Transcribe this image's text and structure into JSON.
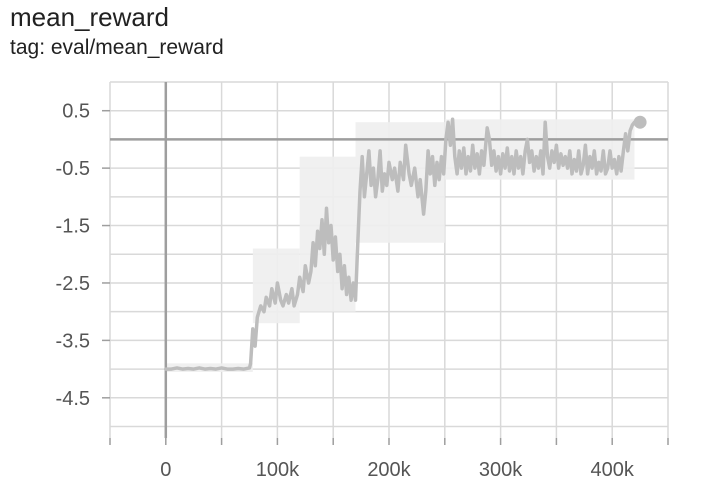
{
  "card": {
    "title": "mean_reward",
    "tag": "tag: eval/mean_reward"
  },
  "colors": {
    "grid": "#d9d9d9",
    "zero_axis": "#9e9e9e",
    "smoothed": "#bdbdbd",
    "raw": "#eeeeee"
  },
  "chart_data": {
    "type": "line",
    "title": "mean_reward",
    "xlabel": "",
    "ylabel": "",
    "xlim": [
      -50000,
      450000
    ],
    "ylim": [
      -5.2,
      1.0
    ],
    "grid": true,
    "x_ticks": [
      0,
      100000,
      200000,
      300000,
      400000
    ],
    "x_tick_labels": [
      "0",
      "100k",
      "200k",
      "300k",
      "400k"
    ],
    "y_ticks": [
      0.5,
      -0.5,
      -1.5,
      -2.5,
      -3.5,
      -4.5
    ],
    "y_tick_labels": [
      "0.5",
      "-0.5",
      "-1.5",
      "-2.5",
      "-3.5",
      "-4.5"
    ],
    "series": [
      {
        "name": "",
        "role": "smoothed",
        "points": [
          [
            0,
            -4.0
          ],
          [
            5000,
            -4.0
          ],
          [
            10000,
            -3.98
          ],
          [
            15000,
            -4.0
          ],
          [
            20000,
            -3.99
          ],
          [
            25000,
            -4.0
          ],
          [
            30000,
            -3.98
          ],
          [
            35000,
            -4.0
          ],
          [
            40000,
            -3.99
          ],
          [
            45000,
            -4.0
          ],
          [
            50000,
            -3.98
          ],
          [
            55000,
            -4.0
          ],
          [
            60000,
            -4.0
          ],
          [
            65000,
            -3.99
          ],
          [
            70000,
            -4.0
          ],
          [
            75000,
            -3.98
          ],
          [
            76000,
            -3.9
          ],
          [
            78000,
            -3.3
          ],
          [
            80000,
            -3.6
          ],
          [
            82000,
            -3.1
          ],
          [
            85000,
            -2.9
          ],
          [
            88000,
            -3.0
          ],
          [
            90000,
            -2.75
          ],
          [
            93000,
            -2.9
          ],
          [
            95000,
            -2.6
          ],
          [
            98000,
            -2.85
          ],
          [
            100000,
            -2.5
          ],
          [
            103000,
            -2.8
          ],
          [
            105000,
            -2.9
          ],
          [
            108000,
            -2.7
          ],
          [
            110000,
            -2.85
          ],
          [
            113000,
            -2.6
          ],
          [
            115000,
            -2.9
          ],
          [
            118000,
            -2.7
          ],
          [
            120000,
            -2.4
          ],
          [
            123000,
            -2.65
          ],
          [
            125000,
            -2.2
          ],
          [
            128000,
            -2.5
          ],
          [
            130000,
            -2.3
          ],
          [
            132000,
            -1.8
          ],
          [
            134000,
            -2.2
          ],
          [
            136000,
            -1.6
          ],
          [
            138000,
            -1.9
          ],
          [
            140000,
            -1.4
          ],
          [
            142000,
            -2.0
          ],
          [
            144000,
            -1.2
          ],
          [
            146000,
            -1.8
          ],
          [
            148000,
            -1.5
          ],
          [
            150000,
            -2.1
          ],
          [
            152000,
            -1.7
          ],
          [
            154000,
            -2.3
          ],
          [
            156000,
            -2.0
          ],
          [
            158000,
            -2.6
          ],
          [
            160000,
            -2.2
          ],
          [
            162000,
            -2.7
          ],
          [
            164000,
            -2.4
          ],
          [
            166000,
            -2.8
          ],
          [
            168000,
            -2.5
          ],
          [
            170000,
            -2.8
          ],
          [
            172000,
            -1.8
          ],
          [
            174000,
            -0.9
          ],
          [
            176000,
            -0.3
          ],
          [
            178000,
            -1.0
          ],
          [
            180000,
            -0.6
          ],
          [
            182000,
            -0.2
          ],
          [
            184000,
            -0.8
          ],
          [
            186000,
            -0.5
          ],
          [
            188000,
            -1.0
          ],
          [
            190000,
            -0.7
          ],
          [
            192000,
            -0.2
          ],
          [
            194000,
            -0.9
          ],
          [
            196000,
            -0.6
          ],
          [
            198000,
            -0.8
          ],
          [
            200000,
            -0.4
          ],
          [
            203000,
            -0.7
          ],
          [
            205000,
            -0.5
          ],
          [
            208000,
            -0.9
          ],
          [
            210000,
            -0.4
          ],
          [
            213000,
            -0.7
          ],
          [
            215000,
            -0.1
          ],
          [
            218000,
            -0.6
          ],
          [
            220000,
            -0.8
          ],
          [
            223000,
            -0.5
          ],
          [
            226000,
            -1.0
          ],
          [
            228000,
            -0.7
          ],
          [
            231000,
            -1.3
          ],
          [
            233000,
            -0.9
          ],
          [
            235000,
            -0.2
          ],
          [
            237000,
            -0.6
          ],
          [
            239000,
            -0.3
          ],
          [
            241000,
            -0.8
          ],
          [
            243000,
            -0.4
          ],
          [
            245000,
            -0.7
          ],
          [
            247000,
            -0.3
          ],
          [
            249000,
            -0.6
          ],
          [
            251000,
            0.0
          ],
          [
            253000,
            0.3
          ],
          [
            255000,
            -0.1
          ],
          [
            257000,
            0.35
          ],
          [
            259000,
            -0.3
          ],
          [
            261000,
            -0.6
          ],
          [
            263000,
            -0.2
          ],
          [
            265000,
            -0.5
          ],
          [
            267000,
            -0.15
          ],
          [
            269000,
            -0.6
          ],
          [
            271000,
            -0.3
          ],
          [
            273000,
            -0.55
          ],
          [
            275000,
            -0.1
          ],
          [
            277000,
            -0.5
          ],
          [
            279000,
            -0.25
          ],
          [
            281000,
            -0.6
          ],
          [
            283000,
            -0.2
          ],
          [
            285000,
            -0.45
          ],
          [
            288000,
            0.2
          ],
          [
            290000,
            0.0
          ],
          [
            292000,
            -0.45
          ],
          [
            294000,
            -0.2
          ],
          [
            296000,
            -0.55
          ],
          [
            298000,
            -0.3
          ],
          [
            300000,
            -0.6
          ],
          [
            302000,
            -0.25
          ],
          [
            304000,
            -0.5
          ],
          [
            306000,
            -0.15
          ],
          [
            308000,
            -0.55
          ],
          [
            310000,
            -0.3
          ],
          [
            312000,
            -0.6
          ],
          [
            314000,
            -0.2
          ],
          [
            316000,
            -0.5
          ],
          [
            318000,
            -0.3
          ],
          [
            320000,
            -0.6
          ],
          [
            322000,
            -0.2
          ],
          [
            324000,
            0.0
          ],
          [
            326000,
            -0.4
          ],
          [
            328000,
            -0.2
          ],
          [
            330000,
            -0.55
          ],
          [
            332000,
            -0.3
          ],
          [
            334000,
            -0.5
          ],
          [
            336000,
            -0.2
          ],
          [
            338000,
            -0.6
          ],
          [
            340000,
            0.3
          ],
          [
            342000,
            -0.3
          ],
          [
            344000,
            -0.5
          ],
          [
            346000,
            -0.2
          ],
          [
            348000,
            -0.4
          ],
          [
            350000,
            -0.1
          ],
          [
            352000,
            -0.5
          ],
          [
            354000,
            -0.25
          ],
          [
            356000,
            -0.45
          ],
          [
            358000,
            -0.3
          ],
          [
            360000,
            -0.5
          ],
          [
            362000,
            -0.2
          ],
          [
            364000,
            -0.6
          ],
          [
            366000,
            -0.35
          ],
          [
            368000,
            -0.55
          ],
          [
            370000,
            -0.2
          ],
          [
            372000,
            -0.6
          ],
          [
            374000,
            -0.45
          ],
          [
            376000,
            -0.1
          ],
          [
            378000,
            -0.6
          ],
          [
            380000,
            -0.3
          ],
          [
            382000,
            -0.5
          ],
          [
            384000,
            -0.2
          ],
          [
            386000,
            -0.6
          ],
          [
            388000,
            -0.4
          ],
          [
            390000,
            -0.55
          ],
          [
            392000,
            -0.2
          ],
          [
            394000,
            -0.6
          ],
          [
            396000,
            -0.5
          ],
          [
            398000,
            -0.2
          ],
          [
            400000,
            -0.5
          ],
          [
            402000,
            -0.35
          ],
          [
            404000,
            -0.6
          ],
          [
            406000,
            -0.3
          ],
          [
            408000,
            -0.55
          ],
          [
            410000,
            -0.2
          ],
          [
            412000,
            0.1
          ],
          [
            414000,
            -0.2
          ],
          [
            416000,
            0.15
          ],
          [
            418000,
            0.25
          ],
          [
            420000,
            0.3
          ],
          [
            422000,
            0.3
          ],
          [
            425000,
            0.3
          ]
        ]
      }
    ],
    "raw_bands": [
      {
        "x0": 0,
        "x1": 78000,
        "y_low": -4.05,
        "y_high": -3.9
      },
      {
        "x0": 78000,
        "x1": 120000,
        "y_low": -3.2,
        "y_high": -1.9
      },
      {
        "x0": 120000,
        "x1": 170000,
        "y_low": -3.0,
        "y_high": -0.3
      },
      {
        "x0": 170000,
        "x1": 250000,
        "y_low": -1.8,
        "y_high": 0.3
      },
      {
        "x0": 250000,
        "x1": 420000,
        "y_low": -0.7,
        "y_high": 0.35
      }
    ]
  }
}
